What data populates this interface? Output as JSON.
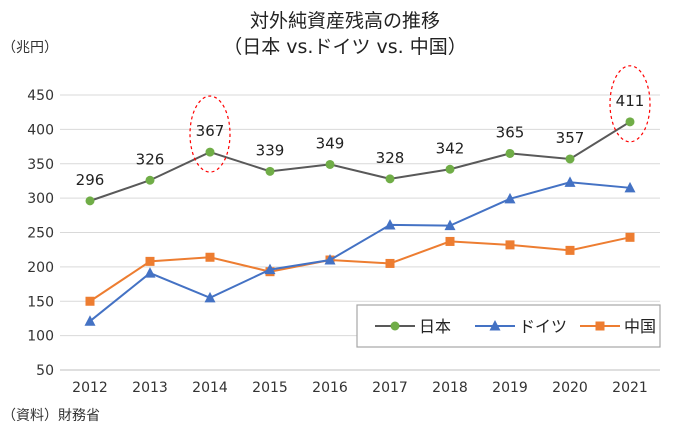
{
  "chart_data": {
    "type": "line",
    "title_line1": "対外純資産残高の推移",
    "title_line2": "（日本 vs.ドイツ vs. 中国）",
    "unit_label": "（兆円）",
    "source": "（資料）財務省",
    "categories": [
      "2012",
      "2013",
      "2014",
      "2015",
      "2016",
      "2017",
      "2018",
      "2019",
      "2020",
      "2021"
    ],
    "ylim": [
      50,
      450
    ],
    "yticks": [
      50,
      100,
      150,
      200,
      250,
      300,
      350,
      400,
      450
    ],
    "grid": true,
    "legend_position": "bottom-right",
    "series": [
      {
        "name": "日本",
        "color": "#595959",
        "marker": "circle",
        "marker_color": "#70AD47",
        "show_labels": true,
        "values": [
          296,
          326,
          367,
          339,
          349,
          328,
          342,
          365,
          357,
          411
        ]
      },
      {
        "name": "ドイツ",
        "color": "#4472C4",
        "marker": "triangle",
        "marker_color": "#4472C4",
        "show_labels": false,
        "values": [
          121,
          191,
          155,
          196,
          210,
          261,
          260,
          299,
          323,
          315
        ]
      },
      {
        "name": "中国",
        "color": "#ED7D31",
        "marker": "square",
        "marker_color": "#ED7D31",
        "show_labels": false,
        "values": [
          150,
          208,
          214,
          193,
          210,
          205,
          237,
          232,
          224,
          243
        ]
      }
    ],
    "highlight_categories": [
      "2014",
      "2021"
    ]
  }
}
